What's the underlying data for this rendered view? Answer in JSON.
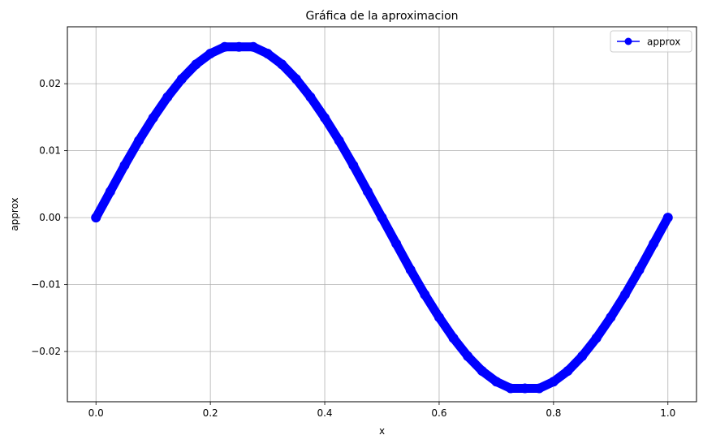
{
  "chart_data": {
    "type": "line",
    "title": "Gráfica de la aproximacion",
    "xlabel": "x",
    "ylabel": "approx",
    "xlim": [
      -0.05,
      1.05
    ],
    "ylim": [
      -0.0275,
      0.0285
    ],
    "xticks": [
      0.0,
      0.2,
      0.4,
      0.6,
      0.8,
      1.0
    ],
    "xtick_labels": [
      "0.0",
      "0.2",
      "0.4",
      "0.6",
      "0.8",
      "1.0"
    ],
    "yticks": [
      -0.02,
      -0.01,
      0.0,
      0.01,
      0.02
    ],
    "ytick_labels": [
      "−0.02",
      "−0.01",
      "0.00",
      "0.01",
      "0.02"
    ],
    "grid": true,
    "legend": {
      "placement": "top-right",
      "entries": [
        "approx"
      ]
    },
    "series": [
      {
        "name": "approx",
        "color": "#0000ff",
        "marker": "circle",
        "x": [
          0.0,
          0.025,
          0.05,
          0.075,
          0.1,
          0.125,
          0.15,
          0.175,
          0.2,
          0.225,
          0.25,
          0.275,
          0.3,
          0.325,
          0.35,
          0.375,
          0.4,
          0.425,
          0.45,
          0.475,
          0.5,
          0.525,
          0.55,
          0.575,
          0.6,
          0.625,
          0.65,
          0.675,
          0.7,
          0.725,
          0.75,
          0.775,
          0.8,
          0.825,
          0.85,
          0.875,
          0.9,
          0.925,
          0.95,
          0.975,
          1.0
        ],
        "y": [
          0.0,
          0.0039,
          0.0078,
          0.0115,
          0.0149,
          0.018,
          0.0207,
          0.0229,
          0.0245,
          0.0255,
          0.0255,
          0.0255,
          0.0245,
          0.0229,
          0.0207,
          0.018,
          0.0149,
          0.0115,
          0.0078,
          0.0039,
          0.0,
          -0.0039,
          -0.0078,
          -0.0115,
          -0.0149,
          -0.018,
          -0.0207,
          -0.0229,
          -0.0245,
          -0.0255,
          -0.0255,
          -0.0255,
          -0.0245,
          -0.0229,
          -0.0207,
          -0.018,
          -0.0149,
          -0.0115,
          -0.0078,
          -0.0039,
          0.0
        ]
      }
    ]
  }
}
